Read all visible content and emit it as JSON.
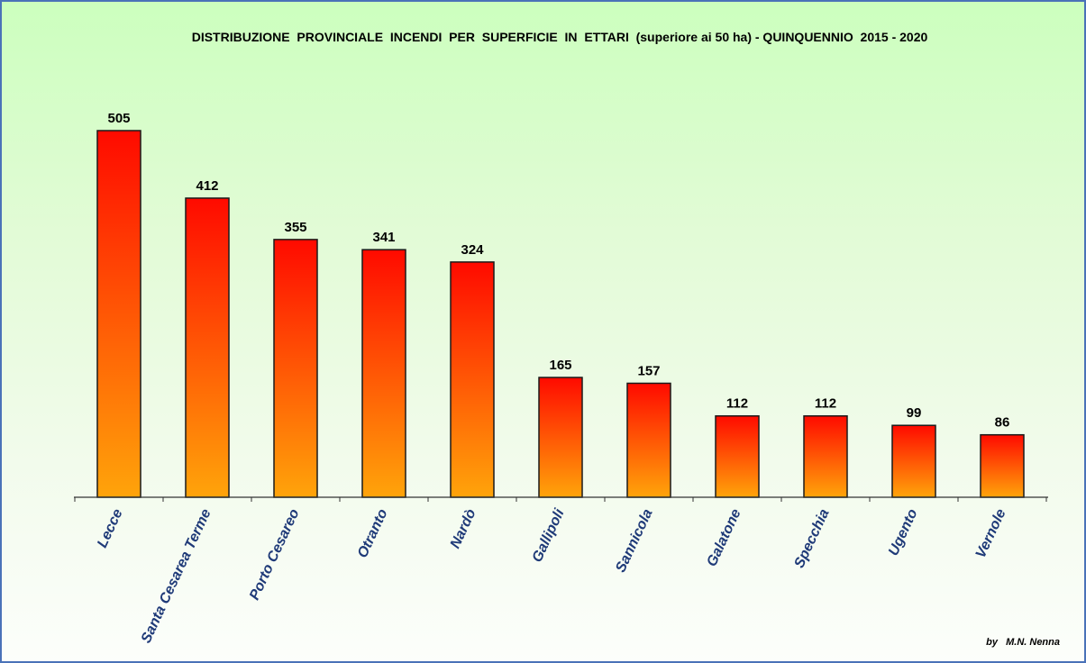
{
  "chart_data": {
    "type": "bar",
    "title": "DISTRIBUZIONE  PROVINCIALE  INCENDI  PER  SUPERFICIE  IN  ETTARI  (superiore ai 50 ha) - QUINQUENNIO  2015 - 2020",
    "categories": [
      "Lecce",
      "Santa Cesarea Terme",
      "Porto Cesareo",
      "Otranto",
      "Nardò",
      "Gallipoli",
      "Sannicola",
      "Galatone",
      "Specchia",
      "Ugento",
      "Vernole"
    ],
    "values": [
      505,
      412,
      355,
      341,
      324,
      165,
      157,
      112,
      112,
      99,
      86
    ],
    "xlabel": "",
    "ylabel": "",
    "ylim": [
      0,
      505
    ],
    "grid": false,
    "data_labels": true,
    "colors": {
      "bar_top": "#ff0a00",
      "bar_bottom": "#ffa40a",
      "bar_stroke": "#1a1a1a",
      "category_text": "#1f3a78",
      "frame_border": "#4a72b8"
    }
  },
  "credit": "by   M.N. Nenna"
}
